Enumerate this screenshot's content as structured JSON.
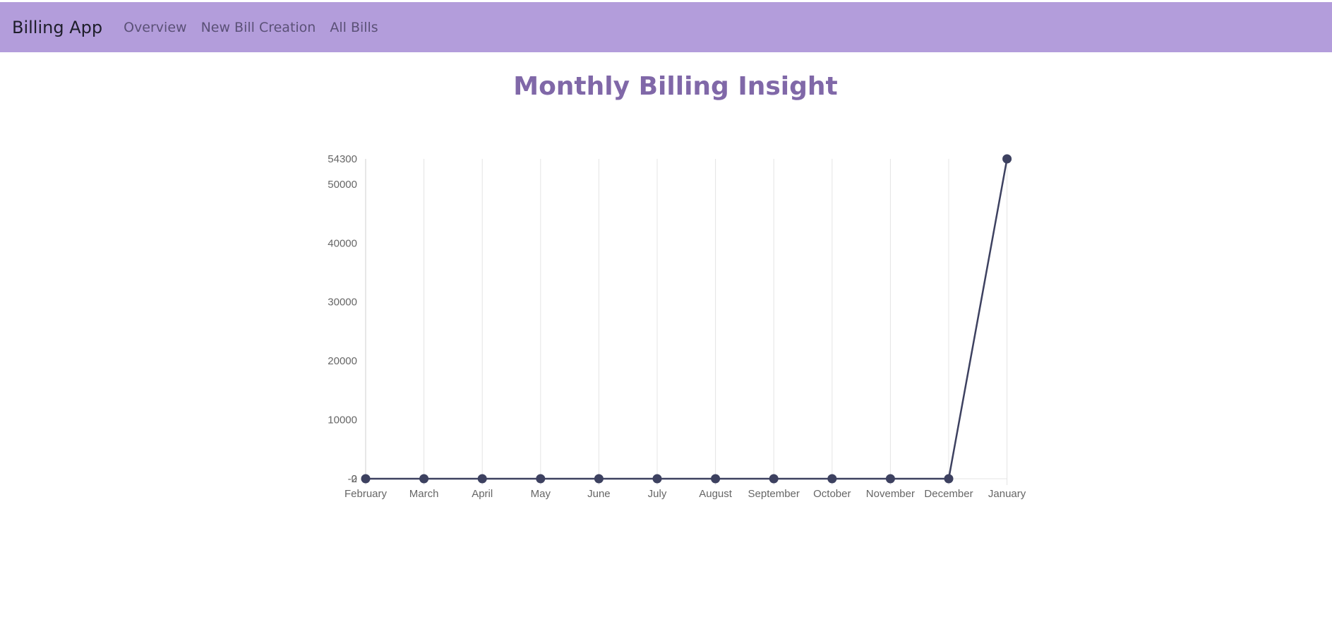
{
  "navbar": {
    "brand": "Billing App",
    "links": [
      "Overview",
      "New Bill Creation",
      "All Bills"
    ],
    "background": "#b39ddb"
  },
  "page": {
    "title": "Monthly Billing Insight"
  },
  "chart_data": {
    "type": "line",
    "categories": [
      "February",
      "March",
      "April",
      "May",
      "June",
      "July",
      "August",
      "September",
      "October",
      "November",
      "December",
      "January"
    ],
    "series": [
      {
        "values": [
          0,
          0,
          0,
          0,
          0,
          0,
          0,
          0,
          0,
          0,
          0,
          54300
        ]
      }
    ],
    "y_ticks": [
      "-2",
      "0",
      "10000",
      "20000",
      "30000",
      "40000",
      "50000",
      "54300"
    ],
    "ylim": [
      0,
      54300
    ],
    "grid": "vertical",
    "line_color": "#3d4160"
  }
}
